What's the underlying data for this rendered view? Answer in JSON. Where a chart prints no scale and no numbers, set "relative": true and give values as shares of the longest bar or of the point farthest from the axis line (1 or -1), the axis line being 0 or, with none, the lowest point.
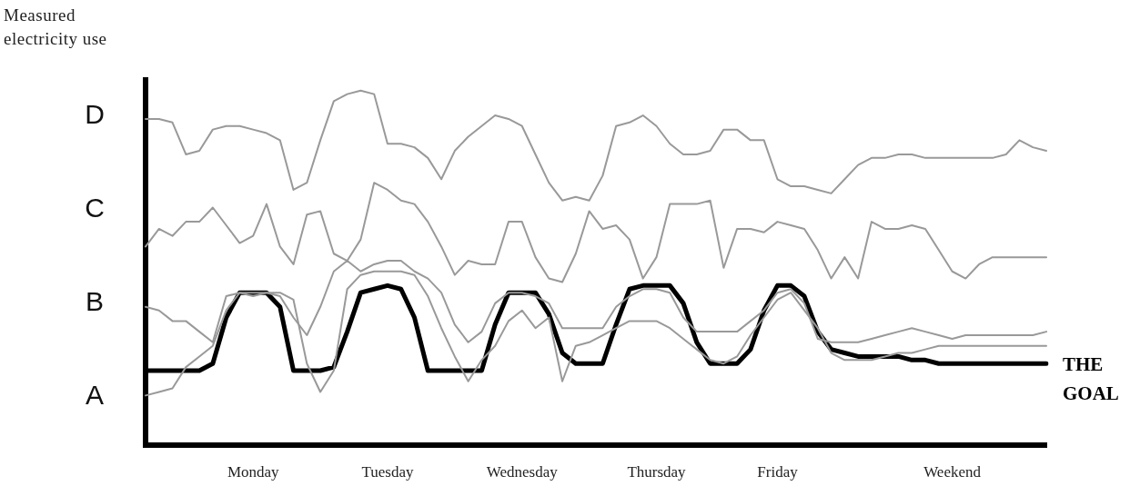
{
  "chart_data": {
    "type": "line",
    "relative": true,
    "ylabel": "Measured electricity use",
    "marker": "none",
    "categories": [
      null,
      null,
      null,
      null,
      null,
      null,
      null,
      null,
      "Monday",
      null,
      null,
      null,
      null,
      null,
      null,
      null,
      null,
      null,
      "Tuesday",
      null,
      null,
      null,
      null,
      null,
      null,
      null,
      null,
      null,
      "Wednesday",
      null,
      null,
      null,
      null,
      null,
      null,
      null,
      null,
      null,
      "Thursday",
      null,
      null,
      null,
      null,
      null,
      null,
      null,
      null,
      "Friday",
      null,
      null,
      null,
      null,
      null,
      null,
      null,
      null,
      null,
      null,
      null,
      null,
      "Weekend",
      null,
      null,
      null,
      null,
      null,
      null,
      null
    ],
    "annotations": [
      "A",
      "B",
      "C",
      "D"
    ],
    "series": [
      {
        "color": "#999999",
        "values": [
          0.92,
          0.92,
          0.91,
          0.82,
          0.83,
          0.89,
          0.9,
          0.9,
          0.89,
          0.88,
          0.86,
          0.72,
          0.74,
          0.86,
          0.97,
          0.99,
          1.0,
          0.99,
          0.85,
          0.85,
          0.84,
          0.81,
          0.75,
          0.83,
          0.87,
          0.9,
          0.93,
          0.92,
          0.9,
          0.82,
          0.74,
          0.69,
          0.7,
          0.69,
          0.76,
          0.9,
          0.91,
          0.93,
          0.9,
          0.85,
          0.82,
          0.82,
          0.83,
          0.89,
          0.89,
          0.86,
          0.86,
          0.75,
          0.73,
          0.73,
          0.72,
          0.71,
          0.75,
          0.79,
          0.81,
          0.81,
          0.82,
          0.82,
          0.81,
          0.81,
          0.81,
          0.81,
          0.81,
          0.81,
          0.82,
          0.86,
          0.84,
          0.83
        ]
      },
      {
        "color": "#999999",
        "values": [
          0.56,
          0.61,
          0.59,
          0.63,
          0.63,
          0.67,
          0.62,
          0.57,
          0.59,
          0.68,
          0.56,
          0.51,
          0.65,
          0.66,
          0.54,
          0.52,
          0.58,
          0.74,
          0.72,
          0.69,
          0.68,
          0.63,
          0.56,
          0.48,
          0.52,
          0.51,
          0.51,
          0.63,
          0.63,
          0.53,
          0.47,
          0.46,
          0.54,
          0.66,
          0.61,
          0.62,
          0.58,
          0.47,
          0.53,
          0.68,
          0.68,
          0.68,
          0.69,
          0.5,
          0.61,
          0.61,
          0.6,
          0.63,
          0.62,
          0.61,
          0.55,
          0.47,
          0.53,
          0.47,
          0.63,
          0.61,
          0.61,
          0.62,
          0.61,
          0.55,
          0.49,
          0.47,
          0.51,
          0.53,
          0.53,
          0.53,
          0.53,
          0.53
        ]
      },
      {
        "color": "#999999",
        "values": [
          0.39,
          0.38,
          0.35,
          0.35,
          0.32,
          0.29,
          0.42,
          0.43,
          0.42,
          0.43,
          0.42,
          0.36,
          0.31,
          0.39,
          0.49,
          0.52,
          0.49,
          0.51,
          0.52,
          0.52,
          0.49,
          0.47,
          0.43,
          0.34,
          0.29,
          0.32,
          0.4,
          0.43,
          0.43,
          0.42,
          0.4,
          0.33,
          0.33,
          0.33,
          0.33,
          0.39,
          0.42,
          0.44,
          0.44,
          0.43,
          0.36,
          0.32,
          0.32,
          0.32,
          0.32,
          0.35,
          0.38,
          0.43,
          0.44,
          0.4,
          0.3,
          0.29,
          0.29,
          0.29,
          0.3,
          0.31,
          0.32,
          0.33,
          0.32,
          0.31,
          0.3,
          0.31,
          0.31,
          0.31,
          0.31,
          0.31,
          0.31,
          0.32
        ]
      },
      {
        "color": "#999999",
        "values": [
          0.14,
          0.15,
          0.16,
          0.22,
          0.25,
          0.28,
          0.38,
          0.43,
          0.43,
          0.43,
          0.43,
          0.41,
          0.23,
          0.15,
          0.21,
          0.44,
          0.48,
          0.49,
          0.49,
          0.49,
          0.48,
          0.42,
          0.33,
          0.25,
          0.18,
          0.24,
          0.28,
          0.35,
          0.38,
          0.33,
          0.36,
          0.18,
          0.28,
          0.29,
          0.31,
          0.33,
          0.35,
          0.35,
          0.35,
          0.33,
          0.3,
          0.27,
          0.24,
          0.23,
          0.25,
          0.31,
          0.36,
          0.41,
          0.43,
          0.38,
          0.33,
          0.26,
          0.24,
          0.24,
          0.24,
          0.25,
          0.26,
          0.26,
          0.27,
          0.28,
          0.28,
          0.28,
          0.28,
          0.28,
          0.28,
          0.28,
          0.28,
          0.28
        ]
      },
      {
        "name": "THE GOAL",
        "color": "#000000",
        "values": [
          0.21,
          0.21,
          0.21,
          0.21,
          0.21,
          0.23,
          0.36,
          0.43,
          0.43,
          0.43,
          0.39,
          0.21,
          0.21,
          0.21,
          0.22,
          0.32,
          0.43,
          0.44,
          0.45,
          0.44,
          0.36,
          0.21,
          0.21,
          0.21,
          0.21,
          0.21,
          0.34,
          0.43,
          0.43,
          0.43,
          0.37,
          0.26,
          0.23,
          0.23,
          0.23,
          0.34,
          0.44,
          0.45,
          0.45,
          0.45,
          0.4,
          0.29,
          0.23,
          0.23,
          0.23,
          0.27,
          0.38,
          0.45,
          0.45,
          0.42,
          0.32,
          0.27,
          0.26,
          0.25,
          0.25,
          0.25,
          0.25,
          0.24,
          0.24,
          0.23,
          0.23,
          0.23,
          0.23,
          0.23,
          0.23,
          0.23,
          0.23,
          0.23
        ]
      }
    ]
  }
}
